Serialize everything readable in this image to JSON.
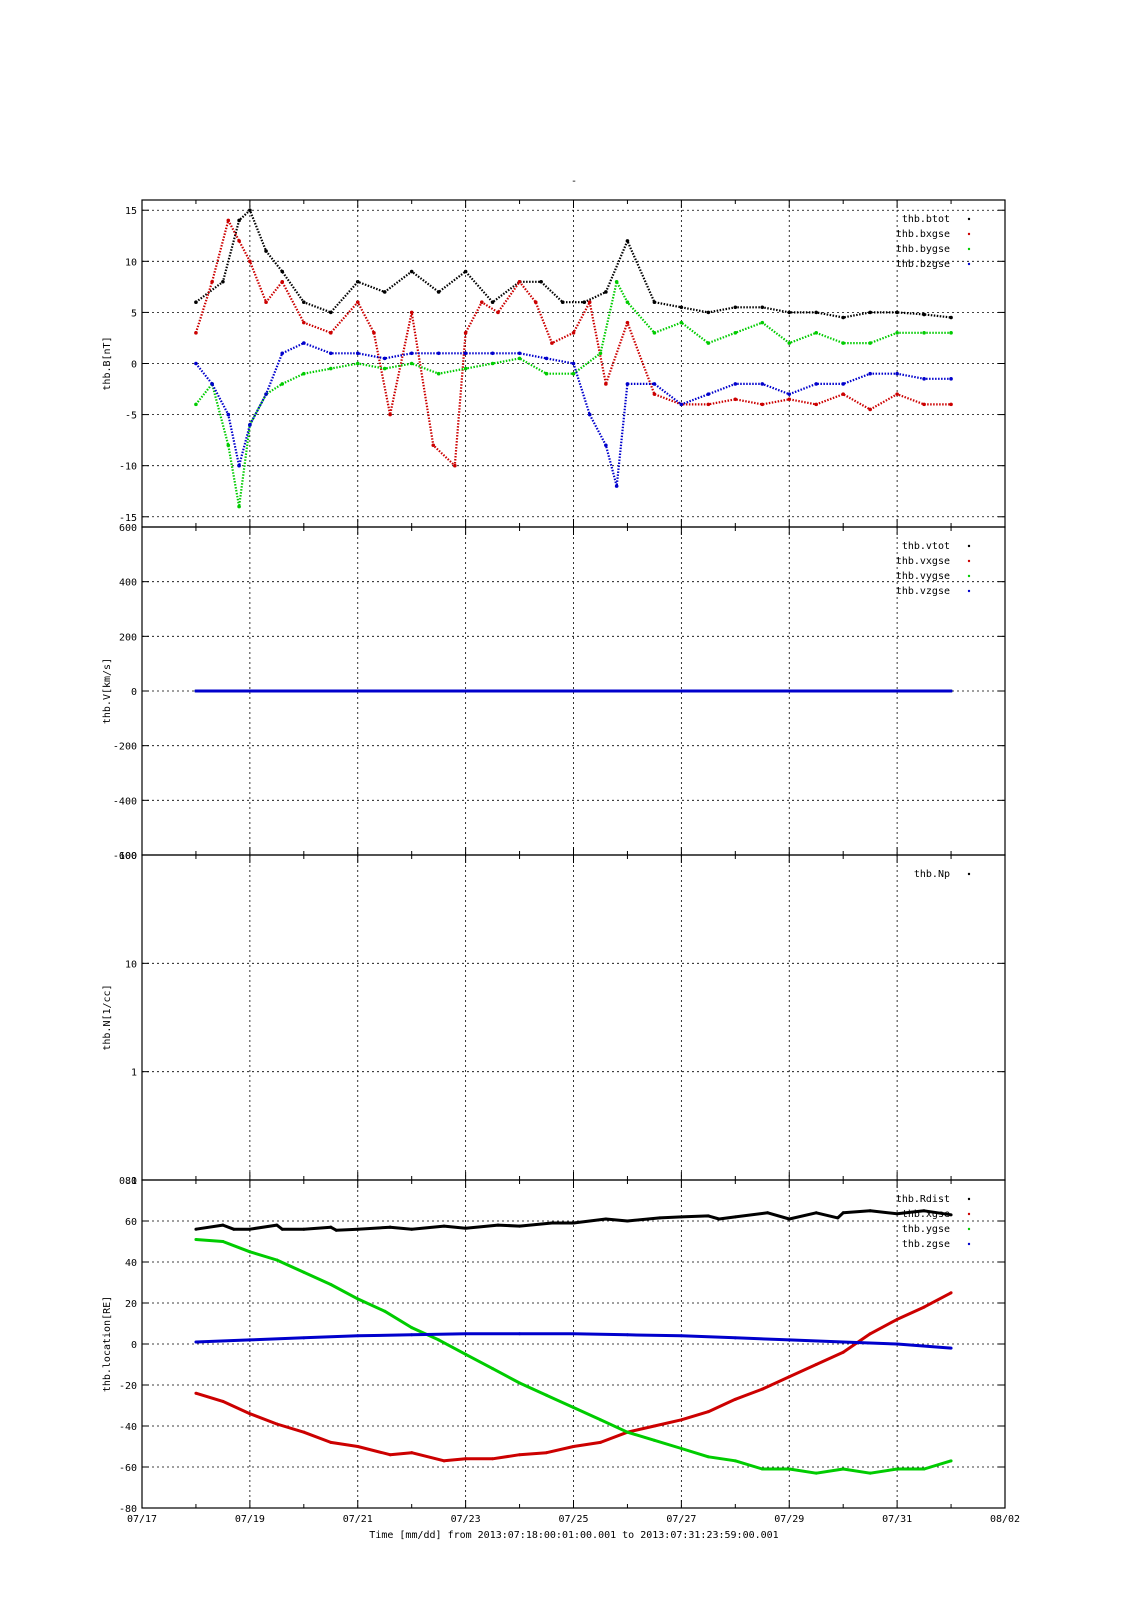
{
  "page_title": "-",
  "x_axis": {
    "xlabel": "Time [mm/dd]  from 2013:07:18:00:01:00.001  to  2013:07:31:23:59:00.001",
    "ticks": [
      "07/17",
      "07/19",
      "07/21",
      "07/23",
      "07/25",
      "07/27",
      "07/29",
      "07/31",
      "08/02"
    ],
    "range_days": [
      17,
      33
    ]
  },
  "colors": {
    "black": "#000000",
    "red": "#cc0000",
    "green": "#00cc00",
    "blue": "#0000cc"
  },
  "chart_data": [
    {
      "type": "scatter",
      "ylabel": "thb.B[nT]",
      "ylim": [
        -16,
        16
      ],
      "yticks": [
        -15,
        -10,
        -5,
        0,
        5,
        10,
        15
      ],
      "ytick_labels": [
        "-15",
        "-10",
        "-5",
        "0",
        "5",
        "10",
        "15"
      ],
      "legend_position": "top-right",
      "grid": true,
      "series": [
        {
          "name": "thb.btot",
          "color": "#000000",
          "x": [
            18.0,
            18.5,
            18.8,
            19.0,
            19.3,
            19.6,
            20.0,
            20.5,
            21.0,
            21.5,
            22.0,
            22.5,
            23.0,
            23.5,
            24.0,
            24.4,
            24.8,
            25.2,
            25.6,
            26.0,
            26.5,
            27.0,
            27.5,
            28.0,
            28.5,
            29.0,
            29.5,
            30.0,
            30.5,
            31.0,
            31.5,
            32.0
          ],
          "values": [
            6,
            8,
            14,
            15,
            11,
            9,
            6,
            5,
            8,
            7,
            9,
            7,
            9,
            6,
            8,
            8,
            6,
            6,
            7,
            12,
            6,
            5.5,
            5,
            5.5,
            5.5,
            5,
            5,
            4.5,
            5,
            5,
            4.8,
            4.5
          ]
        },
        {
          "name": "thb.bxgse",
          "color": "#cc0000",
          "x": [
            18.0,
            18.3,
            18.6,
            18.8,
            19.0,
            19.3,
            19.6,
            20.0,
            20.5,
            21.0,
            21.3,
            21.6,
            22.0,
            22.4,
            22.8,
            23.0,
            23.3,
            23.6,
            24.0,
            24.3,
            24.6,
            25.0,
            25.3,
            25.6,
            26.0,
            26.5,
            27.0,
            27.5,
            28.0,
            28.5,
            29.0,
            29.5,
            30.0,
            30.5,
            31.0,
            31.5,
            32.0
          ],
          "values": [
            3,
            8,
            14,
            12,
            10,
            6,
            8,
            4,
            3,
            6,
            3,
            -5,
            5,
            -8,
            -10,
            3,
            6,
            5,
            8,
            6,
            2,
            3,
            6,
            -2,
            4,
            -3,
            -4,
            -4,
            -3.5,
            -4,
            -3.5,
            -4,
            -3,
            -4.5,
            -3,
            -4,
            -4
          ]
        },
        {
          "name": "thb.bygse",
          "color": "#00cc00",
          "x": [
            18.0,
            18.3,
            18.6,
            18.8,
            19.0,
            19.3,
            19.6,
            20.0,
            20.5,
            21.0,
            21.5,
            22.0,
            22.5,
            23.0,
            23.5,
            24.0,
            24.5,
            25.0,
            25.5,
            25.8,
            26.0,
            26.5,
            27.0,
            27.5,
            28.0,
            28.5,
            29.0,
            29.5,
            30.0,
            30.5,
            31.0,
            31.5,
            32.0
          ],
          "values": [
            -4,
            -2,
            -8,
            -14,
            -6,
            -3,
            -2,
            -1,
            -0.5,
            0,
            -0.5,
            0,
            -1,
            -0.5,
            0,
            0.5,
            -1,
            -1,
            1,
            8,
            6,
            3,
            4,
            2,
            3,
            4,
            2,
            3,
            2,
            2,
            3,
            3,
            3
          ]
        },
        {
          "name": "thb.bzgse",
          "color": "#0000cc",
          "x": [
            18.0,
            18.3,
            18.6,
            18.8,
            19.0,
            19.3,
            19.6,
            20.0,
            20.5,
            21.0,
            21.5,
            22.0,
            22.5,
            23.0,
            23.5,
            24.0,
            24.5,
            25.0,
            25.3,
            25.6,
            25.8,
            26.0,
            26.5,
            27.0,
            27.5,
            28.0,
            28.5,
            29.0,
            29.5,
            30.0,
            30.5,
            31.0,
            31.5,
            32.0
          ],
          "values": [
            0,
            -2,
            -5,
            -10,
            -6,
            -3,
            1,
            2,
            1,
            1,
            0.5,
            1,
            1,
            1,
            1,
            1,
            0.5,
            0,
            -5,
            -8,
            -12,
            -2,
            -2,
            -4,
            -3,
            -2,
            -2,
            -3,
            -2,
            -2,
            -1,
            -1,
            -1.5,
            -1.5
          ]
        }
      ]
    },
    {
      "type": "scatter",
      "ylabel": "thb.V[km/s]",
      "ylim": [
        -600,
        600
      ],
      "yticks": [
        -600,
        -400,
        -200,
        0,
        200,
        400,
        600
      ],
      "ytick_labels": [
        "-600",
        "-400",
        "-200",
        "0",
        "200",
        "400",
        "600"
      ],
      "legend_position": "top-right",
      "grid": true,
      "series": [
        {
          "name": "thb.vtot",
          "color": "#000000",
          "x": [
            18.0,
            32.0
          ],
          "values": [
            0,
            0
          ]
        },
        {
          "name": "thb.vxgse",
          "color": "#cc0000",
          "x": [
            18.0,
            32.0
          ],
          "values": [
            0,
            0
          ]
        },
        {
          "name": "thb.vygse",
          "color": "#00cc00",
          "x": [
            18.0,
            32.0
          ],
          "values": [
            0,
            0
          ]
        },
        {
          "name": "thb.vzgse",
          "color": "#0000cc",
          "x": [
            18.0,
            32.0
          ],
          "values": [
            0,
            0
          ]
        }
      ]
    },
    {
      "type": "scatter",
      "ylabel": "thb.N[1/cc]",
      "ylim": [
        0.1,
        100
      ],
      "log_scale": true,
      "yticks": [
        0.1,
        1,
        10,
        100
      ],
      "ytick_labels": [
        "0.1",
        "1",
        "10",
        "100"
      ],
      "legend_position": "top-right",
      "grid": true,
      "series": [
        {
          "name": "thb.Np",
          "color": "#000000",
          "x": [],
          "values": []
        }
      ]
    },
    {
      "type": "line",
      "ylabel": "thb.location[RE]",
      "ylim": [
        -80,
        80
      ],
      "yticks": [
        -80,
        -60,
        -40,
        -20,
        0,
        20,
        40,
        60,
        80
      ],
      "ytick_labels": [
        "-80",
        "-60",
        "-40",
        "-20",
        "0",
        "20",
        "40",
        "60",
        "80"
      ],
      "legend_position": "top-right",
      "grid": true,
      "series": [
        {
          "name": "thb.Rdist",
          "color": "#000000",
          "x": [
            18.0,
            18.5,
            18.7,
            19.0,
            19.5,
            19.6,
            20.0,
            20.5,
            20.6,
            21.0,
            21.6,
            22.0,
            22.6,
            23.0,
            23.6,
            24.0,
            24.6,
            25.0,
            25.6,
            26.0,
            26.6,
            27.0,
            27.5,
            27.7,
            28.0,
            28.6,
            29.0,
            29.5,
            29.9,
            30.0,
            30.5,
            31.0,
            31.5,
            32.0
          ],
          "values": [
            56,
            58,
            56,
            56,
            58,
            56,
            56,
            57,
            55.5,
            56,
            57,
            56,
            57.5,
            56.5,
            58,
            57.5,
            59,
            59,
            61,
            60,
            61.5,
            62,
            62.5,
            61,
            62,
            64,
            61,
            64,
            61.5,
            64,
            65,
            63.5,
            65,
            63
          ]
        },
        {
          "name": "thb.xgse",
          "color": "#cc0000",
          "x": [
            18.0,
            18.5,
            19.0,
            19.5,
            20.0,
            20.5,
            21.0,
            21.6,
            22.0,
            22.6,
            23.0,
            23.5,
            24.0,
            24.5,
            25.0,
            25.5,
            26.0,
            26.5,
            27.0,
            27.5,
            28.0,
            28.5,
            29.0,
            29.5,
            30.0,
            30.5,
            31.0,
            31.5,
            32.0
          ],
          "values": [
            -24,
            -28,
            -34,
            -39,
            -43,
            -48,
            -50,
            -54,
            -53,
            -57,
            -56,
            -56,
            -54,
            -53,
            -50,
            -48,
            -43,
            -40,
            -37,
            -33,
            -27,
            -22,
            -16,
            -10,
            -4,
            5,
            12,
            18,
            25
          ]
        },
        {
          "name": "thb.ygse",
          "color": "#00cc00",
          "x": [
            18.0,
            18.5,
            19.0,
            19.5,
            20.0,
            20.5,
            21.0,
            21.5,
            22.0,
            22.5,
            23.0,
            23.5,
            24.0,
            24.5,
            25.0,
            25.5,
            26.0,
            26.5,
            27.0,
            27.5,
            28.0,
            28.5,
            29.0,
            29.5,
            30.0,
            30.5,
            31.0,
            31.5,
            32.0
          ],
          "values": [
            51,
            50,
            45,
            41,
            35,
            29,
            22,
            16,
            8,
            2,
            -5,
            -12,
            -19,
            -25,
            -31,
            -37,
            -43,
            -47,
            -51,
            -55,
            -57,
            -61,
            -61,
            -63,
            -61,
            -63,
            -61,
            -61,
            -57
          ]
        },
        {
          "name": "thb.zgse",
          "color": "#0000cc",
          "x": [
            18.0,
            19.0,
            20.0,
            21.0,
            22.0,
            23.0,
            24.0,
            25.0,
            26.0,
            27.0,
            28.0,
            29.0,
            30.0,
            31.0,
            32.0
          ],
          "values": [
            1,
            2,
            3,
            4,
            4.5,
            5,
            5,
            5,
            4.5,
            4,
            3,
            2,
            1,
            0,
            -2
          ]
        }
      ]
    }
  ]
}
